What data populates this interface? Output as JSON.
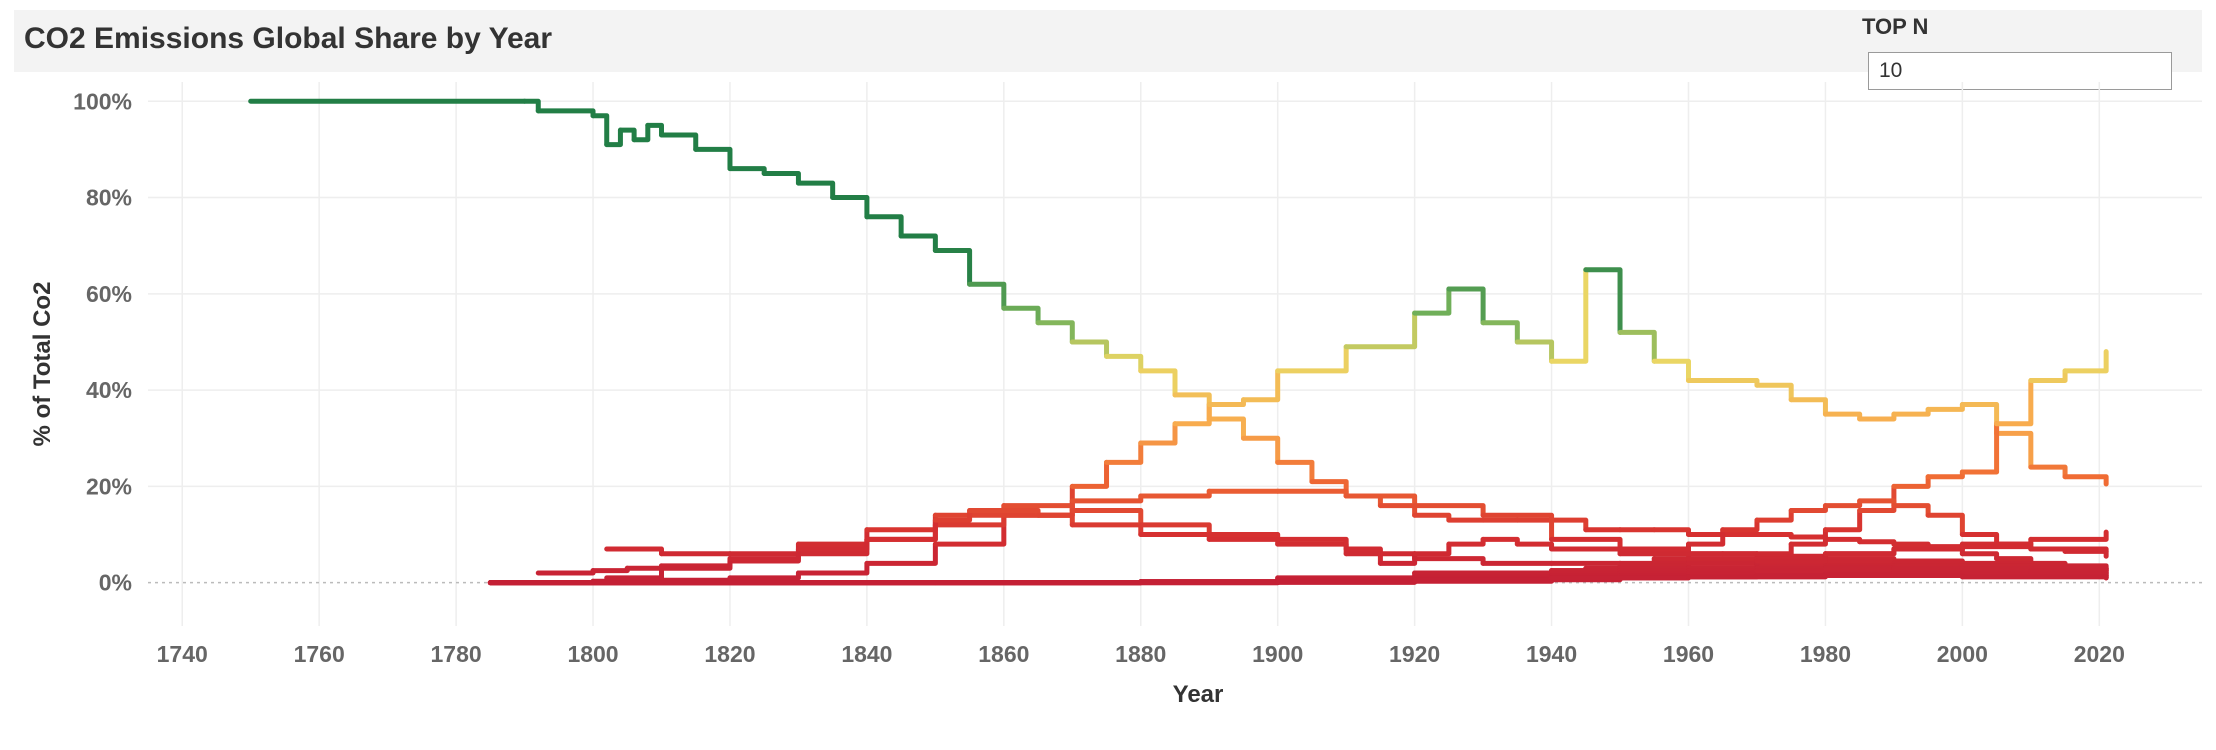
{
  "header": {
    "title": "CO2 Emissions Global Share by Year"
  },
  "parameter": {
    "label": "TOP N",
    "value": "10"
  },
  "chart_data": {
    "type": "line",
    "title": "CO2 Emissions Global Share by Year",
    "xlabel": "Year",
    "ylabel": "% of Total Co2",
    "xlim": [
      1735,
      2035
    ],
    "ylim": [
      -9,
      104
    ],
    "xticks": [
      1740,
      1760,
      1780,
      1800,
      1820,
      1840,
      1860,
      1880,
      1900,
      1920,
      1940,
      1960,
      1980,
      2000,
      2020
    ],
    "xtick_labels": [
      "1740",
      "1760",
      "1780",
      "1800",
      "1820",
      "1840",
      "1860",
      "1880",
      "1900",
      "1920",
      "1940",
      "1960",
      "1980",
      "2000",
      "2020"
    ],
    "yticks": [
      0,
      20,
      40,
      60,
      80,
      100
    ],
    "ytick_labels": [
      "0%",
      "20%",
      "40%",
      "60%",
      "80%",
      "100%"
    ],
    "y_unit": "%",
    "grid": true,
    "legend": "none",
    "line_style": "step",
    "color_scale": "red-yellow-green by share",
    "series": [
      {
        "x": [
          1750,
          1790,
          1792,
          1800,
          1802,
          1804,
          1806,
          1808,
          1810,
          1815,
          1820,
          1825,
          1830,
          1835,
          1840,
          1845,
          1850,
          1855,
          1860,
          1865,
          1870,
          1875,
          1880,
          1885,
          1890,
          1895,
          1900,
          1905,
          1910,
          1915,
          1920,
          1925,
          1930,
          1935,
          1940,
          1945,
          1950,
          1955,
          1960,
          1965,
          1970,
          1975,
          1980,
          1985,
          1990,
          1995,
          2000,
          2005,
          2010,
          2015,
          2021
        ],
        "values": [
          100,
          100,
          98,
          97,
          91,
          94,
          92,
          95,
          93,
          90,
          86,
          85,
          83,
          80,
          76,
          72,
          69,
          62,
          57,
          54,
          50,
          47,
          44,
          39,
          34,
          30,
          25,
          21,
          18,
          16,
          14,
          13,
          13,
          13,
          13,
          11,
          11,
          11,
          10,
          10,
          10,
          9.5,
          9,
          8.5,
          8,
          7.5,
          6,
          5,
          4,
          3,
          2.5
        ]
      },
      {
        "x": [
          1785,
          1800,
          1810,
          1820,
          1830,
          1840,
          1850,
          1860,
          1870,
          1875,
          1880,
          1885,
          1890,
          1895,
          1900,
          1910,
          1920,
          1925,
          1930,
          1935,
          1940,
          1945,
          1950,
          1955,
          1960,
          1965,
          1970,
          1975,
          1980,
          1985,
          1990,
          1995,
          2000,
          2005,
          2010,
          2015,
          2021
        ],
        "values": [
          0,
          0.3,
          0.5,
          1,
          2,
          4,
          8,
          14,
          20,
          25,
          29,
          33,
          37,
          38,
          44,
          49,
          56,
          61,
          54,
          50,
          46,
          65,
          52,
          46,
          42,
          42,
          41,
          38,
          35,
          34,
          35,
          36,
          37,
          31,
          24,
          22,
          20.5
        ]
      },
      {
        "x": [
          1785,
          1850,
          1880,
          1900,
          1905,
          1910,
          1920,
          1925,
          1930,
          1935,
          1940,
          1945,
          1950,
          1955,
          1960,
          1965,
          1970,
          1975,
          1980,
          1985,
          1990,
          1995,
          2000,
          2005,
          2010,
          2015,
          2021
        ],
        "values": [
          0,
          0,
          0.2,
          0.5,
          0.6,
          0.8,
          1,
          1.5,
          2,
          2,
          2.5,
          3,
          4,
          5,
          6,
          6,
          6,
          8,
          11,
          15,
          20,
          22,
          23,
          33,
          42,
          44,
          48
        ]
      },
      {
        "x": [
          1785,
          1850,
          1880,
          1900,
          1910,
          1920,
          1930,
          1940,
          1950,
          1955,
          1960,
          1965,
          1970,
          1975,
          1980,
          1985,
          1990,
          1995,
          2000,
          2005,
          2010,
          2015,
          2021
        ],
        "values": [
          0,
          0,
          0.1,
          0.2,
          0.5,
          1,
          1.5,
          2,
          2.5,
          4,
          8,
          11,
          13,
          15,
          16,
          17,
          16,
          14,
          10,
          8,
          7,
          6.5,
          5.5
        ]
      },
      {
        "x": [
          1792,
          1800,
          1805,
          1810,
          1820,
          1830,
          1840,
          1850,
          1860,
          1870,
          1880,
          1890,
          1900,
          1910,
          1920,
          1930,
          1940,
          1950,
          1960,
          1970,
          1980,
          1990,
          2000,
          2010,
          2021
        ],
        "values": [
          2,
          2.5,
          3,
          3.5,
          4.5,
          6,
          9,
          12,
          14,
          17,
          18,
          19,
          19,
          18,
          16,
          14,
          9,
          7,
          6,
          5.5,
          5,
          4.5,
          4,
          3.5,
          3
        ]
      },
      {
        "x": [
          1802,
          1810,
          1820,
          1830,
          1840,
          1850,
          1860,
          1865,
          1870,
          1880,
          1890,
          1900,
          1910,
          1920,
          1930,
          1940,
          1950,
          1960,
          1970,
          1980,
          1990,
          2000,
          2010,
          2021
        ],
        "values": [
          7,
          6,
          6,
          8,
          11,
          14,
          15,
          14,
          12,
          10,
          9,
          8,
          6,
          5,
          4,
          4,
          3.5,
          3,
          3,
          2.5,
          2,
          2,
          1.5,
          1
        ]
      },
      {
        "x": [
          1802,
          1810,
          1820,
          1830,
          1840,
          1850,
          1855,
          1860,
          1870,
          1880,
          1890,
          1900,
          1910,
          1915,
          1920,
          1925,
          1930,
          1935,
          1940,
          1950,
          1960,
          1970,
          1980,
          1990,
          2000,
          2010,
          2021
        ],
        "values": [
          1,
          3,
          5,
          7,
          9,
          13,
          15,
          16,
          15,
          12,
          10,
          9,
          7,
          4,
          6,
          8,
          9,
          8,
          7,
          6,
          5,
          4,
          3,
          2.5,
          2,
          1.5,
          1
        ]
      },
      {
        "x": [
          1785,
          1850,
          1880,
          1900,
          1920,
          1940,
          1950,
          1960,
          1970,
          1980,
          1990,
          2000,
          2010,
          2021
        ],
        "values": [
          0,
          0,
          0.2,
          0.5,
          1,
          2,
          3,
          4,
          5,
          6,
          7,
          8,
          9,
          10.5
        ]
      },
      {
        "x": [
          1785,
          1880,
          1900,
          1920,
          1940,
          1950,
          1960,
          1970,
          1980,
          1990,
          2000,
          2010,
          2021
        ],
        "values": [
          0,
          0.2,
          1,
          2,
          2.5,
          2.5,
          3,
          4,
          4.5,
          4,
          3.5,
          3,
          2
        ]
      },
      {
        "x": [
          1785,
          1880,
          1900,
          1920,
          1940,
          1950,
          1960,
          1970,
          1980,
          1990,
          2000,
          2010,
          2021
        ],
        "values": [
          0,
          0.2,
          0.6,
          1.2,
          2,
          2.5,
          3,
          4.5,
          6,
          7,
          7.5,
          7,
          6.5
        ]
      },
      {
        "x": [
          1785,
          1880,
          1900,
          1920,
          1940,
          1950,
          1960,
          1970,
          1980,
          1990,
          2000,
          2010,
          2021
        ],
        "values": [
          0,
          0.1,
          0.4,
          1,
          1.5,
          2,
          2.5,
          3,
          3.5,
          3.5,
          3.5,
          3,
          2.5
        ]
      },
      {
        "x": [
          1785,
          1880,
          1900,
          1920,
          1940,
          1950,
          1960,
          1970,
          1980,
          1990,
          2000,
          2010,
          2021
        ],
        "values": [
          0,
          0.1,
          0.3,
          0.8,
          1.5,
          2,
          2.5,
          3,
          3,
          2.5,
          2.5,
          2,
          1.5
        ]
      },
      {
        "x": [
          1785,
          1900,
          1920,
          1940,
          1950,
          1960,
          1970,
          1980,
          1990,
          2000,
          2010,
          2021
        ],
        "values": [
          0,
          0.1,
          0.4,
          1,
          1.5,
          2,
          2.5,
          3,
          3,
          3,
          2.5,
          2
        ]
      },
      {
        "x": [
          1785,
          1900,
          1920,
          1940,
          1950,
          1960,
          1970,
          1980,
          1990,
          2000,
          2010,
          2021
        ],
        "values": [
          0,
          0.1,
          0.3,
          0.6,
          1,
          1.2,
          1.5,
          1.8,
          2,
          2,
          2,
          1.5
        ]
      },
      {
        "x": [
          1785,
          1880,
          1900,
          1920,
          1940,
          1960,
          1980,
          2000,
          2021
        ],
        "values": [
          0,
          0,
          0.2,
          0.5,
          1,
          1.2,
          1.5,
          1.2,
          1
        ]
      }
    ]
  }
}
